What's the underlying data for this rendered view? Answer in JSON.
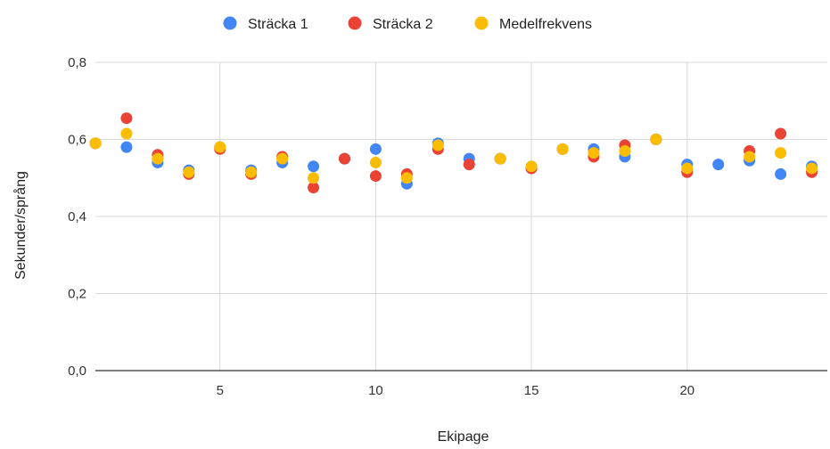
{
  "chart_data": {
    "type": "scatter",
    "title": "",
    "xlabel": "Ekipage",
    "ylabel": "Sekunder/språng",
    "xlim": [
      1,
      24.5
    ],
    "ylim": [
      0,
      0.8
    ],
    "x_ticks": [
      {
        "value": 5,
        "label": "5"
      },
      {
        "value": 10,
        "label": "10"
      },
      {
        "value": 15,
        "label": "15"
      },
      {
        "value": 20,
        "label": "20"
      }
    ],
    "y_ticks": [
      {
        "value": 0,
        "label": "0,0"
      },
      {
        "value": 0.2,
        "label": "0,2"
      },
      {
        "value": 0.4,
        "label": "0,4"
      },
      {
        "value": 0.6,
        "label": "0,6"
      },
      {
        "value": 0.8,
        "label": "0,8"
      }
    ],
    "grid": true,
    "legend_position": "top",
    "series": [
      {
        "name": "Sträcka 1",
        "color": "#4285F4",
        "points": [
          [
            1,
            0.59
          ],
          [
            2,
            0.58
          ],
          [
            3,
            0.54
          ],
          [
            4,
            0.52
          ],
          [
            5,
            0.58
          ],
          [
            6,
            0.52
          ],
          [
            7,
            0.54
          ],
          [
            8,
            0.53
          ],
          [
            9,
            0.55
          ],
          [
            10,
            0.575
          ],
          [
            11,
            0.485
          ],
          [
            12,
            0.59
          ],
          [
            13,
            0.55
          ],
          [
            14,
            0.55
          ],
          [
            15,
            0.525
          ],
          [
            16,
            0.575
          ],
          [
            17,
            0.575
          ],
          [
            18,
            0.555
          ],
          [
            19,
            0.6
          ],
          [
            20,
            0.535
          ],
          [
            21,
            0.535
          ],
          [
            22,
            0.545
          ],
          [
            23,
            0.51
          ],
          [
            24,
            0.53
          ]
        ]
      },
      {
        "name": "Sträcka 2",
        "color": "#EA4335",
        "points": [
          [
            1,
            0.59
          ],
          [
            2,
            0.655
          ],
          [
            3,
            0.56
          ],
          [
            4,
            0.51
          ],
          [
            5,
            0.575
          ],
          [
            6,
            0.51
          ],
          [
            7,
            0.555
          ],
          [
            8,
            0.475
          ],
          [
            9,
            0.55
          ],
          [
            10,
            0.505
          ],
          [
            11,
            0.51
          ],
          [
            12,
            0.575
          ],
          [
            13,
            0.535
          ],
          [
            14,
            0.55
          ],
          [
            15,
            0.525
          ],
          [
            16,
            0.575
          ],
          [
            17,
            0.555
          ],
          [
            18,
            0.585
          ],
          [
            19,
            0.6
          ],
          [
            20,
            0.515
          ],
          [
            22,
            0.57
          ],
          [
            23,
            0.615
          ],
          [
            24,
            0.515
          ]
        ]
      },
      {
        "name": "Medelfrekvens",
        "color": "#FBBC04",
        "points": [
          [
            1,
            0.59
          ],
          [
            2,
            0.615
          ],
          [
            3,
            0.55
          ],
          [
            4,
            0.515
          ],
          [
            5,
            0.58
          ],
          [
            6,
            0.515
          ],
          [
            7,
            0.55
          ],
          [
            8,
            0.5
          ],
          [
            10,
            0.54
          ],
          [
            11,
            0.5
          ],
          [
            12,
            0.585
          ],
          [
            14,
            0.55
          ],
          [
            15,
            0.53
          ],
          [
            16,
            0.575
          ],
          [
            17,
            0.565
          ],
          [
            18,
            0.57
          ],
          [
            19,
            0.6
          ],
          [
            20,
            0.525
          ],
          [
            22,
            0.555
          ],
          [
            23,
            0.565
          ],
          [
            24,
            0.525
          ]
        ]
      }
    ]
  }
}
